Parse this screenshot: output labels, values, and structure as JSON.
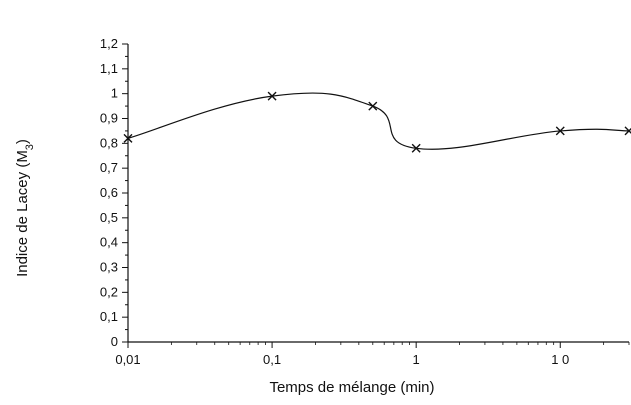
{
  "chart_data": {
    "type": "line",
    "xlabel": "Temps de mélange (min)",
    "ylabel": {
      "main": "Indice de Lacey (M",
      "sub": "3",
      "close": ")"
    },
    "x_scale": "log",
    "xlim": [
      0.01,
      30
    ],
    "ylim": [
      0,
      1.2
    ],
    "x_ticks": [
      {
        "value": 0.01,
        "label": "0,01"
      },
      {
        "value": 0.1,
        "label": "0,1"
      },
      {
        "value": 1,
        "label": "1"
      },
      {
        "value": 10,
        "label": "1 0"
      }
    ],
    "y_ticks": [
      {
        "value": 0,
        "label": "0"
      },
      {
        "value": 0.1,
        "label": "0,1"
      },
      {
        "value": 0.2,
        "label": "0,2"
      },
      {
        "value": 0.3,
        "label": "0,3"
      },
      {
        "value": 0.4,
        "label": "0,4"
      },
      {
        "value": 0.5,
        "label": "0,5"
      },
      {
        "value": 0.6,
        "label": "0,6"
      },
      {
        "value": 0.7,
        "label": "0,7"
      },
      {
        "value": 0.8,
        "label": "0,8"
      },
      {
        "value": 0.9,
        "label": "0,9"
      },
      {
        "value": 1.0,
        "label": "1"
      },
      {
        "value": 1.1,
        "label": "1,1"
      },
      {
        "value": 1.2,
        "label": "1,2"
      }
    ],
    "series": [
      {
        "marker": "x",
        "color": "#111111",
        "points": [
          {
            "x": 0.01,
            "y": 0.82
          },
          {
            "x": 0.1,
            "y": 0.99
          },
          {
            "x": 0.5,
            "y": 0.95
          },
          {
            "x": 1,
            "y": 0.78
          },
          {
            "x": 10,
            "y": 0.85
          },
          {
            "x": 30,
            "y": 0.85
          }
        ]
      }
    ],
    "grid": false,
    "legend": "none"
  }
}
